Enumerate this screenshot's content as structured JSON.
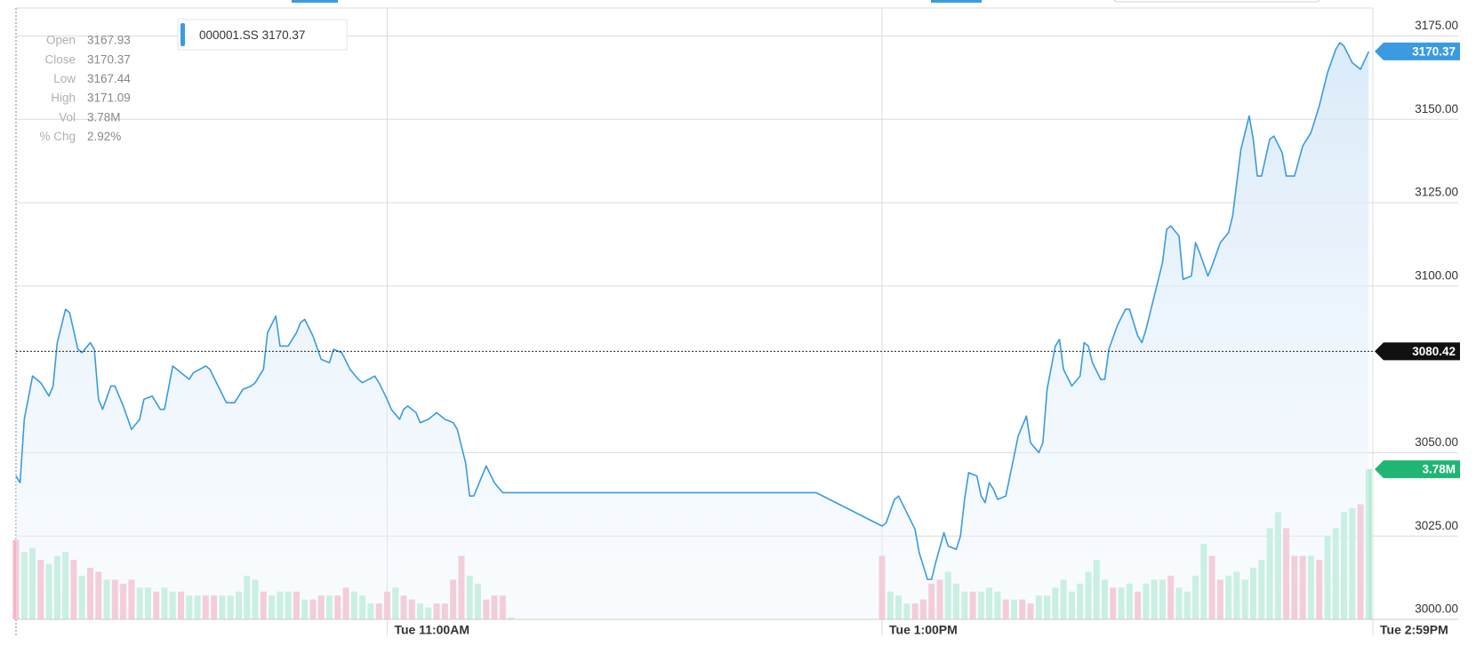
{
  "chart_data": {
    "type": "line",
    "series": [
      {
        "name": "000001.SS",
        "color": "#3a9be0",
        "x": [
          570,
          571,
          572,
          574,
          576,
          578,
          579,
          580,
          582,
          583,
          585,
          586,
          588,
          589,
          590,
          591,
          593,
          594,
          596,
          598,
          600,
          601,
          603,
          605,
          606,
          608,
          610,
          612,
          613,
          616,
          617,
          619,
          621,
          623,
          625,
          627,
          628,
          630,
          631,
          633,
          634,
          636,
          638,
          639,
          640,
          642,
          644,
          646,
          647,
          649,
          651,
          653,
          654,
          657,
          658,
          660,
          661,
          663,
          664,
          665,
          667,
          668,
          670,
          672,
          674,
          676,
          677,
          679,
          680,
          681,
          683,
          684,
          686,
          688,
          690,
          764,
          780,
          781,
          783,
          784,
          786,
          788,
          789,
          791,
          792,
          793,
          795,
          796,
          798,
          799,
          800,
          801,
          803,
          804,
          805,
          806,
          807,
          808,
          810,
          812,
          813,
          815,
          816,
          818,
          819,
          820,
          822,
          823,
          824,
          826,
          828,
          829,
          830,
          831,
          833,
          834,
          835,
          837,
          839,
          840,
          842,
          843,
          844,
          846,
          848,
          849,
          850,
          852,
          853,
          855,
          856,
          857,
          859,
          860,
          862,
          864,
          865,
          867,
          869,
          870,
          871,
          872,
          874,
          875,
          877,
          878,
          880,
          882,
          884,
          886,
          888,
          890,
          891,
          892,
          894,
          896,
          898
        ],
        "values": [
          3043,
          3041,
          3060,
          3073,
          3071,
          3067,
          3070,
          3083,
          3093,
          3092,
          3081,
          3080,
          3083,
          3081,
          3066,
          3063,
          3070,
          3070,
          3064,
          3057,
          3060,
          3066,
          3067,
          3063,
          3063,
          3076,
          3074,
          3072,
          3074,
          3076,
          3075,
          3070,
          3065,
          3065,
          3069,
          3070,
          3071,
          3075,
          3086,
          3091,
          3082,
          3082,
          3086,
          3089,
          3090,
          3085,
          3078,
          3077,
          3081,
          3080,
          3075,
          3072,
          3071,
          3073,
          3071,
          3066,
          3063,
          3060,
          3063,
          3064,
          3062,
          3059,
          3060,
          3062,
          3060,
          3059,
          3057,
          3047,
          3037,
          3037,
          3043,
          3046,
          3041,
          3038,
          3038,
          3038,
          3028,
          3029,
          3036,
          3037,
          3032,
          3027,
          3020,
          3012,
          3012,
          3017,
          3026,
          3022,
          3021,
          3025,
          3036,
          3044,
          3043,
          3037,
          3035,
          3041,
          3039,
          3036,
          3037,
          3049,
          3055,
          3061,
          3053,
          3050,
          3053,
          3069,
          3082,
          3084,
          3075,
          3070,
          3073,
          3083,
          3082,
          3077,
          3072,
          3072,
          3081,
          3088,
          3093,
          3093,
          3085,
          3083,
          3087,
          3097,
          3107,
          3117,
          3118,
          3115,
          3102,
          3103,
          3113,
          3110,
          3103,
          3106,
          3113,
          3116,
          3121,
          3141,
          3151,
          3144,
          3133,
          3133,
          3144,
          3145,
          3140,
          3133,
          3133,
          3142,
          3146,
          3154,
          3164,
          3171,
          3173,
          3172,
          3167,
          3165,
          3170.37
        ]
      }
    ],
    "volume": {
      "type": "bar",
      "axis": "y2",
      "x": [
        570,
        572,
        574,
        576,
        578,
        580,
        582,
        584,
        586,
        588,
        590,
        592,
        594,
        596,
        598,
        600,
        602,
        604,
        606,
        608,
        610,
        612,
        614,
        616,
        618,
        620,
        622,
        624,
        626,
        628,
        630,
        632,
        634,
        636,
        638,
        640,
        642,
        644,
        646,
        648,
        650,
        652,
        654,
        656,
        658,
        660,
        662,
        664,
        666,
        668,
        670,
        672,
        674,
        676,
        678,
        680,
        682,
        684,
        686,
        688,
        690,
        780,
        782,
        784,
        786,
        788,
        790,
        792,
        794,
        796,
        798,
        800,
        802,
        804,
        806,
        808,
        810,
        812,
        814,
        816,
        818,
        820,
        822,
        824,
        826,
        828,
        830,
        832,
        834,
        836,
        838,
        840,
        842,
        844,
        846,
        848,
        850,
        852,
        854,
        856,
        858,
        860,
        862,
        864,
        866,
        868,
        870,
        872,
        874,
        876,
        878,
        880,
        882,
        884,
        886,
        888,
        890,
        892,
        894,
        896,
        898
      ],
      "values": [
        2.0,
        1.7,
        1.8,
        1.5,
        1.4,
        1.6,
        1.7,
        1.5,
        1.1,
        1.3,
        1.2,
        1.0,
        1.0,
        0.9,
        1.0,
        0.8,
        0.8,
        0.7,
        0.8,
        0.7,
        0.7,
        0.6,
        0.6,
        0.6,
        0.6,
        0.6,
        0.6,
        0.7,
        1.1,
        1.0,
        0.7,
        0.6,
        0.7,
        0.7,
        0.7,
        0.5,
        0.5,
        0.6,
        0.6,
        0.6,
        0.8,
        0.7,
        0.6,
        0.4,
        0.4,
        0.7,
        0.8,
        0.6,
        0.5,
        0.4,
        0.3,
        0.4,
        0.4,
        1.0,
        1.6,
        1.1,
        0.9,
        0.5,
        0.6,
        0.6,
        0.05,
        1.6,
        0.7,
        0.6,
        0.4,
        0.4,
        0.5,
        0.9,
        1.0,
        1.2,
        0.9,
        0.7,
        0.7,
        0.7,
        0.8,
        0.7,
        0.5,
        0.5,
        0.5,
        0.4,
        0.6,
        0.6,
        0.8,
        1.0,
        0.7,
        0.9,
        1.2,
        1.5,
        1.0,
        0.8,
        0.8,
        0.9,
        0.7,
        0.9,
        1.0,
        1.0,
        1.1,
        0.8,
        0.7,
        1.1,
        1.9,
        1.6,
        1.0,
        1.1,
        1.2,
        1.0,
        1.3,
        1.5,
        2.3,
        2.7,
        2.3,
        1.6,
        1.6,
        1.6,
        1.5,
        2.1,
        2.3,
        2.7,
        2.8,
        2.9,
        3.78
      ],
      "colors": [
        "#f7b6c6",
        "#b5ecd3",
        "#b5ecd3",
        "#f7b6c6",
        "#b5ecd3",
        "#b5ecd3",
        "#b5ecd3",
        "#f7b6c6",
        "#b5ecd3",
        "#f7b6c6",
        "#f7b6c6",
        "#b5ecd3",
        "#f7b6c6",
        "#f7b6c6",
        "#f7b6c6",
        "#b5ecd3",
        "#b5ecd3",
        "#f7b6c6",
        "#b5ecd3",
        "#b5ecd3",
        "#f7b6c6",
        "#b5ecd3",
        "#b5ecd3",
        "#f7b6c6",
        "#f7b6c6",
        "#b5ecd3",
        "#b5ecd3",
        "#b5ecd3",
        "#b5ecd3",
        "#b5ecd3",
        "#f7b6c6",
        "#b5ecd3",
        "#b5ecd3",
        "#b5ecd3",
        "#f7b6c6",
        "#b5ecd3",
        "#f7b6c6",
        "#f7b6c6",
        "#b5ecd3",
        "#f7b6c6",
        "#f7b6c6",
        "#b5ecd3",
        "#b5ecd3",
        "#b5ecd3",
        "#f7b6c6",
        "#f7b6c6",
        "#b5ecd3",
        "#f7b6c6",
        "#f7b6c6",
        "#b5ecd3",
        "#b5ecd3",
        "#f7b6c6",
        "#f7b6c6",
        "#f7b6c6",
        "#f7b6c6",
        "#b5ecd3",
        "#b5ecd3",
        "#f7b6c6",
        "#f7b6c6",
        "#f7b6c6",
        "#b5ecd3",
        "#f7b6c6",
        "#b5ecd3",
        "#b5ecd3",
        "#b5ecd3",
        "#f7b6c6",
        "#f7b6c6",
        "#f7b6c6",
        "#f7b6c6",
        "#b5ecd3",
        "#b5ecd3",
        "#b5ecd3",
        "#f7b6c6",
        "#b5ecd3",
        "#b5ecd3",
        "#b5ecd3",
        "#f7b6c6",
        "#b5ecd3",
        "#f7b6c6",
        "#f7b6c6",
        "#b5ecd3",
        "#b5ecd3",
        "#b5ecd3",
        "#b5ecd3",
        "#b5ecd3",
        "#b5ecd3",
        "#b5ecd3",
        "#b5ecd3",
        "#b5ecd3",
        "#f7b6c6",
        "#b5ecd3",
        "#b5ecd3",
        "#f7b6c6",
        "#b5ecd3",
        "#b5ecd3",
        "#b5ecd3",
        "#f7b6c6",
        "#b5ecd3",
        "#b5ecd3",
        "#b5ecd3",
        "#b5ecd3",
        "#f7b6c6",
        "#f7b6c6",
        "#b5ecd3",
        "#b5ecd3",
        "#b5ecd3",
        "#b5ecd3",
        "#b5ecd3",
        "#b5ecd3",
        "#b5ecd3",
        "#f7b6c6",
        "#f7b6c6",
        "#f7b6c6",
        "#b5ecd3",
        "#f7b6c6",
        "#b5ecd3",
        "#b5ecd3",
        "#b5ecd3",
        "#b5ecd3",
        "#f7b6c6",
        "#b5ecd3"
      ],
      "value_labels": [
        null,
        null,
        null,
        null,
        null,
        null,
        null,
        null,
        null,
        null,
        null,
        null,
        null,
        null,
        null,
        null,
        null,
        null,
        null,
        null,
        null,
        null,
        null,
        null,
        null,
        null,
        null,
        null,
        null,
        null,
        null,
        null,
        null,
        null,
        null,
        null,
        null,
        null,
        null,
        null,
        null,
        null,
        null,
        null,
        null,
        null,
        null,
        null,
        null,
        null,
        null,
        null,
        null,
        null,
        null,
        null,
        null,
        null,
        null,
        null,
        null,
        null,
        null,
        null,
        null,
        null,
        null,
        null,
        null,
        null,
        null,
        null,
        null,
        null,
        null,
        null,
        null,
        null,
        null,
        null,
        null,
        null,
        null,
        null,
        null,
        null,
        null,
        null,
        null,
        null,
        null,
        null,
        null,
        null,
        null,
        null,
        null,
        null,
        null,
        null,
        null,
        null,
        null,
        null,
        null,
        null,
        null,
        null,
        null,
        null,
        null,
        null,
        null,
        null,
        null,
        null,
        null,
        null,
        null,
        null,
        "3.78M"
      ],
      "tag_color": "#21b573"
    },
    "xlim": [
      570,
      899
    ],
    "xticks": [
      {
        "value": 660,
        "label": "Tue 11:00AM"
      },
      {
        "value": 780,
        "label": "Tue 1:00PM"
      },
      {
        "value": 899,
        "label": "Tue 2:59PM"
      }
    ],
    "ylim": [
      3000,
      3183.4
    ],
    "yticks": [
      {
        "value": 3000,
        "label": "3000.00"
      },
      {
        "value": 3025,
        "label": "3025.00"
      },
      {
        "value": 3050,
        "label": "3050.00"
      },
      {
        "value": 3100,
        "label": "3100.00"
      },
      {
        "value": 3125,
        "label": "3125.00"
      },
      {
        "value": 3150,
        "label": "3150.00"
      },
      {
        "value": 3175,
        "label": "3175.00"
      }
    ],
    "y2lim": [
      0,
      15.4
    ],
    "grid": true,
    "reference_line": 3080.42,
    "info": [
      {
        "label": "Open",
        "value": "3167.93"
      },
      {
        "label": "Close",
        "value": "3170.37"
      },
      {
        "label": "Low",
        "value": "3167.44"
      },
      {
        "label": "High",
        "value": "3171.09"
      },
      {
        "label": "Vol",
        "value": "3.78M"
      },
      {
        "label": "% Chg",
        "value": "2.92%"
      }
    ]
  }
}
